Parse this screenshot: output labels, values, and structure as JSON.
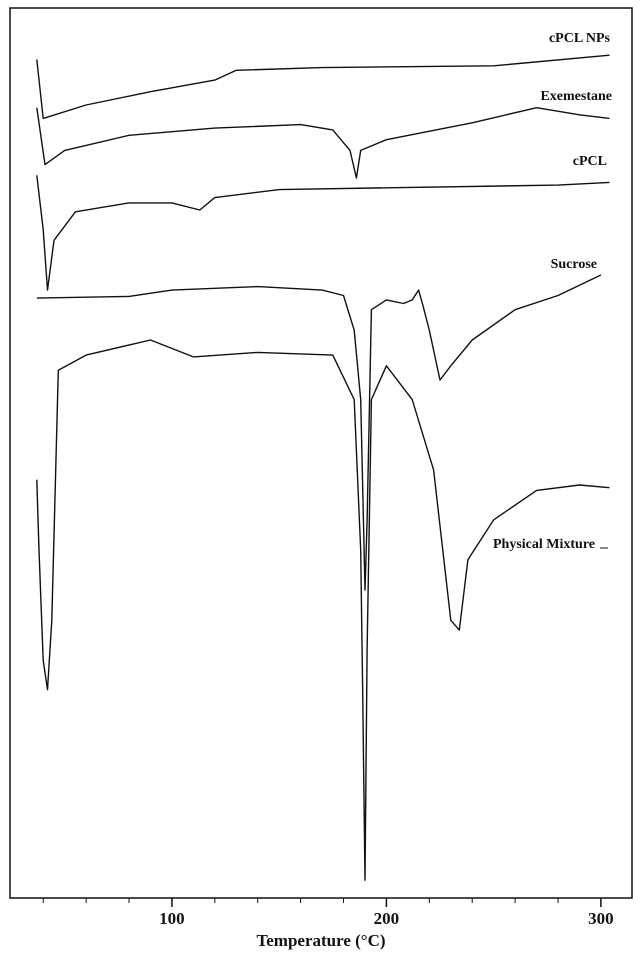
{
  "chart_data": {
    "type": "line",
    "x_label": "Temperature (°C)",
    "xlim": [
      24.5,
      314.5
    ],
    "ylim": [
      0,
      100
    ],
    "xticks": [
      100,
      200,
      300
    ],
    "minor_xticks": [
      40,
      60,
      80,
      120,
      140,
      160,
      180,
      220,
      240,
      260,
      280
    ],
    "color": "#111111",
    "series": [
      {
        "name": "cPCL NPs",
        "color": "#111111",
        "x": [
          37,
          40,
          60,
          90,
          120,
          130,
          170,
          250,
          304
        ],
        "values": [
          94.2,
          87.6,
          89.1,
          90.6,
          91.9,
          93.0,
          93.3,
          93.5,
          94.7
        ]
      },
      {
        "name": "Exemestane",
        "color": "#111111",
        "x": [
          37,
          40.8,
          50,
          80,
          120,
          160,
          175,
          183,
          186,
          188,
          200,
          240,
          270,
          290,
          304
        ],
        "values": [
          88.8,
          82.4,
          84.0,
          85.7,
          86.5,
          86.9,
          86.3,
          84.0,
          80.9,
          84.0,
          85.2,
          87.1,
          88.8,
          88.0,
          87.6
        ]
      },
      {
        "name": "cPCL",
        "color": "#111111",
        "x": [
          37,
          40,
          42,
          45,
          55,
          80,
          100,
          113,
          120,
          150,
          200,
          280,
          304
        ],
        "values": [
          81.2,
          75.1,
          68.3,
          73.9,
          77.1,
          78.1,
          78.1,
          77.3,
          78.7,
          79.6,
          79.8,
          80.1,
          80.4
        ]
      },
      {
        "name": "Sucrose",
        "color": "#111111",
        "x": [
          37,
          80,
          100,
          140,
          170,
          180,
          185,
          188,
          190,
          191,
          193,
          200,
          208,
          212,
          215,
          217,
          220,
          225,
          230,
          240,
          260,
          280,
          300
        ],
        "values": [
          67.4,
          67.6,
          68.3,
          68.7,
          68.3,
          67.7,
          63.8,
          56.0,
          34.6,
          42.4,
          66.1,
          67.2,
          66.8,
          67.2,
          68.3,
          66.6,
          63.8,
          58.2,
          59.8,
          62.7,
          66.1,
          67.7,
          70.0
        ]
      },
      {
        "name": "Physical Mixture",
        "color": "#111111",
        "x": [
          37,
          38,
          40,
          42,
          44,
          47,
          60,
          90,
          110,
          140,
          175,
          185,
          188,
          189,
          190,
          191,
          193,
          200,
          212,
          222,
          230,
          234,
          238,
          250,
          270,
          290,
          304
        ],
        "values": [
          47.0,
          39.1,
          26.7,
          23.4,
          31.2,
          59.3,
          61.0,
          62.7,
          60.8,
          61.3,
          61.0,
          56.0,
          39.1,
          22.2,
          2.0,
          27.9,
          56.0,
          59.8,
          56.0,
          48.1,
          31.2,
          30.1,
          38.0,
          42.5,
          45.8,
          46.4,
          46.1
        ]
      }
    ]
  }
}
